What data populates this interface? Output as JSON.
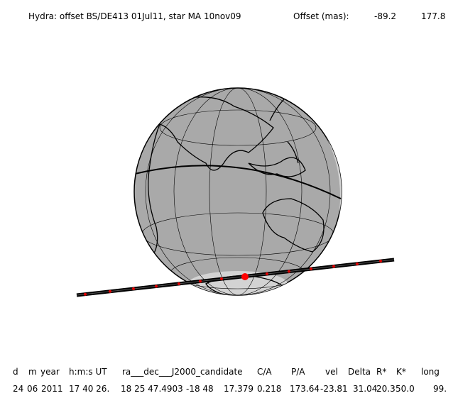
{
  "title": "Hydra: offset BS/DE413 01Jul11, star MA 10nov09",
  "offset_label": "Offset (mas):",
  "offset_values": [
    "-89.2",
    "177.8"
  ],
  "table": {
    "headers": [
      "d",
      "m",
      "year",
      "h:m:s UT",
      "ra___dec___J2000_candidate",
      "C/A",
      "P/A",
      "vel",
      "Delta",
      "R*",
      "K*",
      "long"
    ],
    "values": [
      "24",
      "06",
      "2011",
      "17 40 26.",
      "18 25 47.4903",
      "-18 48",
      "17.379",
      "0.218",
      "173.64",
      "-23.81",
      "31.04",
      "20.3",
      "50.0",
      "99."
    ]
  }
}
